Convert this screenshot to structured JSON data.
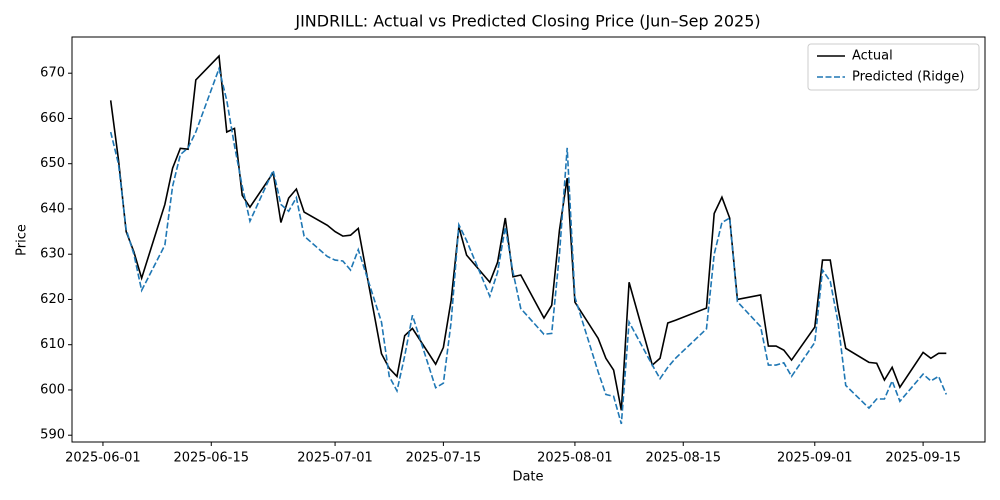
{
  "chart_data": {
    "type": "line",
    "title": "JINDRILL: Actual vs Predicted Closing Price (Jun–Sep 2025)",
    "x_label": "Date",
    "y_label": "Price",
    "x": [
      "2025-06-02",
      "2025-06-03",
      "2025-06-04",
      "2025-06-05",
      "2025-06-06",
      "2025-06-09",
      "2025-06-10",
      "2025-06-11",
      "2025-06-12",
      "2025-06-13",
      "2025-06-16",
      "2025-06-17",
      "2025-06-18",
      "2025-06-19",
      "2025-06-20",
      "2025-06-23",
      "2025-06-24",
      "2025-06-25",
      "2025-06-26",
      "2025-06-27",
      "2025-06-30",
      "2025-07-01",
      "2025-07-02",
      "2025-07-03",
      "2025-07-04",
      "2025-07-07",
      "2025-07-08",
      "2025-07-09",
      "2025-07-10",
      "2025-07-11",
      "2025-07-14",
      "2025-07-15",
      "2025-07-16",
      "2025-07-17",
      "2025-07-18",
      "2025-07-21",
      "2025-07-22",
      "2025-07-23",
      "2025-07-24",
      "2025-07-25",
      "2025-07-28",
      "2025-07-29",
      "2025-07-30",
      "2025-07-31",
      "2025-08-01",
      "2025-08-04",
      "2025-08-05",
      "2025-08-06",
      "2025-08-07",
      "2025-08-08",
      "2025-08-11",
      "2025-08-12",
      "2025-08-13",
      "2025-08-14",
      "2025-08-18",
      "2025-08-19",
      "2025-08-20",
      "2025-08-21",
      "2025-08-22",
      "2025-08-25",
      "2025-08-26",
      "2025-08-27",
      "2025-08-28",
      "2025-08-29",
      "2025-09-01",
      "2025-09-02",
      "2025-09-03",
      "2025-09-04",
      "2025-09-05",
      "2025-09-08",
      "2025-09-09",
      "2025-09-10",
      "2025-09-11",
      "2025-09-12",
      "2025-09-15",
      "2025-09-16",
      "2025-09-17",
      "2025-09-18"
    ],
    "series": [
      {
        "name": "Actual",
        "color": "#000000",
        "dash": false,
        "values": [
          664,
          651,
          635,
          630.5,
          624.7,
          641,
          649,
          653.4,
          653.2,
          668.5,
          673.8,
          657,
          657.8,
          643,
          640.4,
          648,
          637,
          642.4,
          644.4,
          639.3,
          636.4,
          635,
          634,
          634.2,
          635.7,
          608,
          604.8,
          603,
          612,
          613.6,
          605.7,
          609.4,
          619.8,
          636,
          629.8,
          623.8,
          628.2,
          638,
          625,
          625.4,
          615.9,
          618.7,
          635.3,
          646.8,
          619.4,
          611.4,
          607,
          604.4,
          595.5,
          623.8,
          605.5,
          607,
          614.8,
          615.4,
          618.1,
          639,
          642.6,
          638,
          620,
          621,
          609.7,
          609.7,
          608.8,
          606.6,
          613.9,
          628.7,
          628.7,
          618.1,
          609.2,
          606.1,
          605.9,
          602.2,
          605,
          600.6,
          608.3,
          607,
          608.1,
          608.1
        ]
      },
      {
        "name": "Predicted (Ridge)",
        "color": "#1f77b4",
        "dash": true,
        "values": [
          657,
          650,
          635.5,
          630,
          622,
          632,
          645,
          652,
          653.5,
          657,
          671,
          664,
          654,
          645,
          637.3,
          648.5,
          641,
          639.5,
          642.5,
          634,
          629.5,
          628.7,
          628.5,
          626.5,
          631,
          615,
          603,
          599.8,
          607.5,
          616.5,
          600.5,
          601.5,
          615,
          636.5,
          633,
          620.7,
          626,
          636,
          626,
          618,
          612.3,
          612.5,
          630,
          653.5,
          620.5,
          604,
          599,
          598.6,
          592.5,
          615,
          605.5,
          602.5,
          605,
          607,
          613.5,
          630,
          637,
          638,
          619.5,
          614,
          605.5,
          605.5,
          606,
          603,
          610.5,
          626.5,
          624,
          615,
          601,
          596,
          598,
          598,
          602,
          597.5,
          603.5,
          602,
          603,
          599
        ]
      }
    ],
    "xlim": [
      "2025-05-28",
      "2025-09-23"
    ],
    "xticks": [
      "2025-06-01",
      "2025-06-15",
      "2025-07-01",
      "2025-07-15",
      "2025-08-01",
      "2025-08-15",
      "2025-09-01",
      "2025-09-15"
    ],
    "ylim": [
      588.5,
      678
    ],
    "yticks": [
      590,
      600,
      610,
      620,
      630,
      640,
      650,
      660,
      670
    ],
    "grid": false,
    "legend": "upper right"
  }
}
